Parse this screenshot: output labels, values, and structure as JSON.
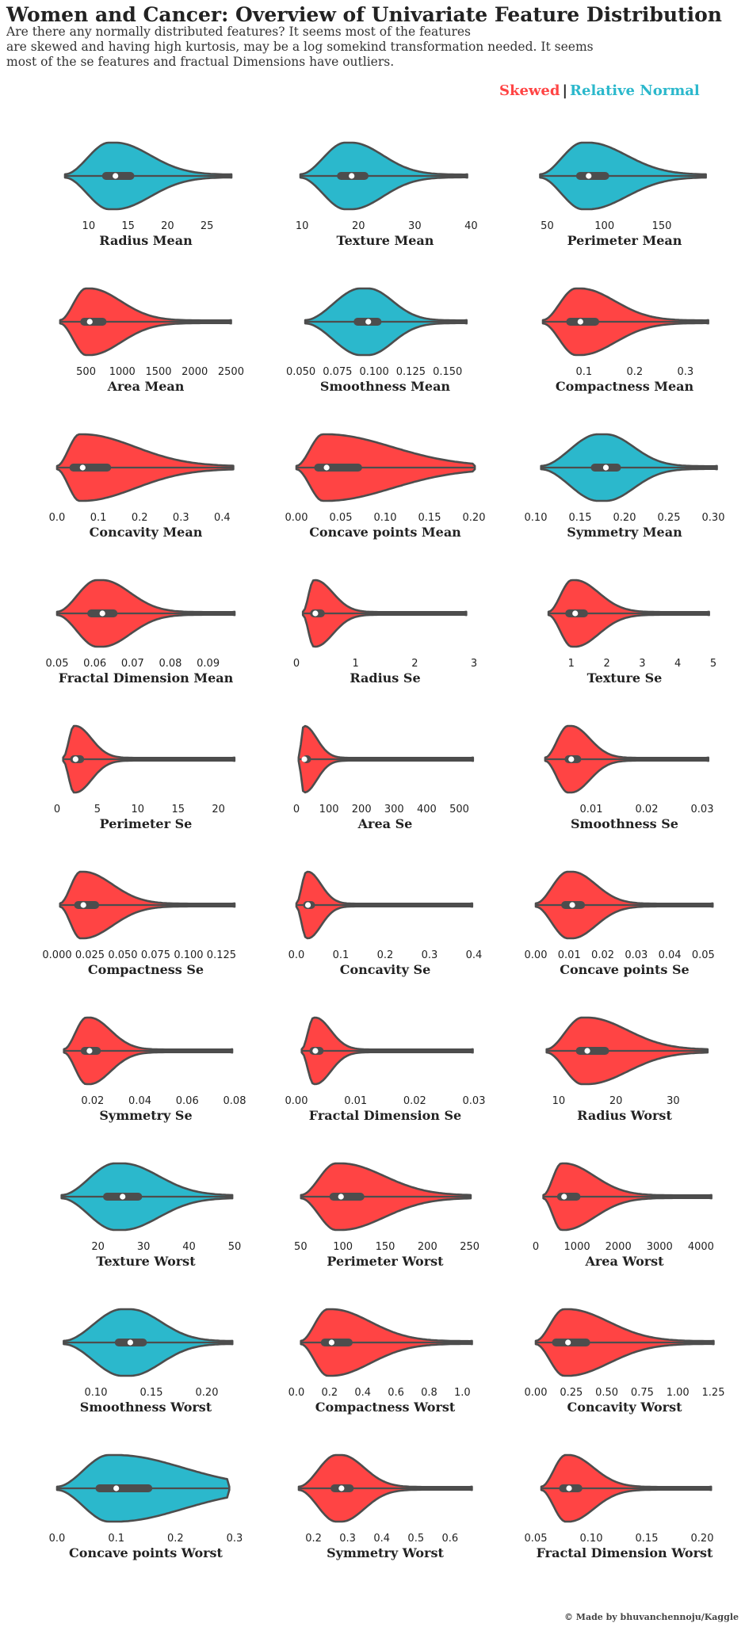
{
  "header": {
    "title": "Women and Cancer: Overview of Univariate Feature Distribution",
    "subtitle": "Are there any normally distributed features? It seems most of the features\nare skewed and having high kurtosis, may be a log somekind transformation needed. It seems\nmost of the se features and fractual Dimensions have outliers."
  },
  "legend": {
    "skewed_label": "Skewed",
    "separator": "|",
    "normal_label": "Relative Normal"
  },
  "colors": {
    "skewed": "#ff4444",
    "normal": "#2bb8cc",
    "outline": "#4d4d4d",
    "box": "#4d4d4d",
    "median": "#ffffff"
  },
  "credit": "© Made by bhuvanchennoju/Kaggle",
  "chart_data": [
    {
      "type": "violin",
      "xlabel": "Radius Mean",
      "category": "normal",
      "range": [
        6,
        28.5
      ],
      "ticks": [
        "10",
        "15",
        "20",
        "25"
      ],
      "min": 7.0,
      "q1": 11.7,
      "median": 13.4,
      "q3": 15.8,
      "max": 28.1
    },
    {
      "type": "violin",
      "xlabel": "Texture Mean",
      "category": "normal",
      "range": [
        9,
        40.5
      ],
      "ticks": [
        "10",
        "20",
        "30",
        "40"
      ],
      "min": 9.7,
      "q1": 16.2,
      "median": 18.8,
      "q3": 21.8,
      "max": 39.3
    },
    {
      "type": "violin",
      "xlabel": "Perimeter Mean",
      "category": "normal",
      "range": [
        40,
        195
      ],
      "ticks": [
        "50",
        "100",
        "150"
      ],
      "min": 43.8,
      "q1": 75.2,
      "median": 86.2,
      "q3": 104.1,
      "max": 188.5
    },
    {
      "type": "violin",
      "xlabel": "Area Mean",
      "category": "skewed",
      "range": [
        100,
        2550
      ],
      "ticks": [
        "500",
        "1000",
        "1500",
        "2000",
        "2500"
      ],
      "min": 143,
      "q1": 420,
      "median": 551,
      "q3": 783,
      "max": 2501
    },
    {
      "type": "violin",
      "xlabel": "Smoothness Mean",
      "category": "normal",
      "range": [
        0.047,
        0.168
      ],
      "ticks": [
        "0.050",
        "0.075",
        "0.100",
        "0.125",
        "0.150"
      ],
      "min": 0.053,
      "q1": 0.086,
      "median": 0.096,
      "q3": 0.105,
      "max": 0.163
    },
    {
      "type": "violin",
      "xlabel": "Compactness Mean",
      "category": "skewed",
      "range": [
        0.005,
        0.355
      ],
      "ticks": [
        "0.1",
        "0.2",
        "0.3"
      ],
      "min": 0.019,
      "q1": 0.065,
      "median": 0.093,
      "q3": 0.13,
      "max": 0.345
    },
    {
      "type": "violin",
      "xlabel": "Concavity Mean",
      "category": "skewed",
      "range": [
        0,
        0.43
      ],
      "ticks": [
        "0.0",
        "0.1",
        "0.2",
        "0.3",
        "0.4"
      ],
      "min": 0.0,
      "q1": 0.03,
      "median": 0.062,
      "q3": 0.131,
      "max": 0.427
    },
    {
      "type": "violin",
      "xlabel": "Concave points Mean",
      "category": "skewed",
      "range": [
        0,
        0.2
      ],
      "ticks": [
        "0.00",
        "0.05",
        "0.10",
        "0.15",
        "0.20"
      ],
      "min": 0.0,
      "q1": 0.02,
      "median": 0.034,
      "q3": 0.074,
      "max": 0.201
    },
    {
      "type": "violin",
      "xlabel": "Symmetry Mean",
      "category": "normal",
      "range": [
        0.1,
        0.3
      ],
      "ticks": [
        "0.10",
        "0.15",
        "0.20",
        "0.25",
        "0.30"
      ],
      "min": 0.106,
      "q1": 0.162,
      "median": 0.179,
      "q3": 0.196,
      "max": 0.304
    },
    {
      "type": "violin",
      "xlabel": "Fractal Dimension Mean",
      "category": "skewed",
      "range": [
        0.05,
        0.097
      ],
      "ticks": [
        "0.05",
        "0.06",
        "0.07",
        "0.08",
        "0.09"
      ],
      "min": 0.05,
      "q1": 0.058,
      "median": 0.062,
      "q3": 0.066,
      "max": 0.097
    },
    {
      "type": "violin",
      "xlabel": "Radius Se",
      "category": "skewed",
      "range": [
        0,
        3
      ],
      "ticks": [
        "0",
        "1",
        "2",
        "3"
      ],
      "min": 0.11,
      "q1": 0.23,
      "median": 0.32,
      "q3": 0.48,
      "max": 2.87
    },
    {
      "type": "violin",
      "xlabel": "Texture Se",
      "category": "skewed",
      "range": [
        0,
        5
      ],
      "ticks": [
        "1",
        "2",
        "3",
        "4",
        "5"
      ],
      "min": 0.36,
      "q1": 0.83,
      "median": 1.11,
      "q3": 1.47,
      "max": 4.88
    },
    {
      "type": "violin",
      "xlabel": "Perimeter Se",
      "category": "skewed",
      "range": [
        0,
        22
      ],
      "ticks": [
        "0",
        "5",
        "10",
        "15",
        "20"
      ],
      "min": 0.76,
      "q1": 1.61,
      "median": 2.29,
      "q3": 3.36,
      "max": 21.98
    },
    {
      "type": "violin",
      "xlabel": "Area Se",
      "category": "skewed",
      "range": [
        0,
        545
      ],
      "ticks": [
        "0",
        "100",
        "200",
        "300",
        "400",
        "500"
      ],
      "min": 6.8,
      "q1": 17.9,
      "median": 24.5,
      "q3": 45.2,
      "max": 542.2
    },
    {
      "type": "violin",
      "xlabel": "Smoothness Se",
      "category": "skewed",
      "range": [
        0,
        0.032
      ],
      "ticks": [
        "0.01",
        "0.02",
        "0.03"
      ],
      "min": 0.0017,
      "q1": 0.0052,
      "median": 0.0064,
      "q3": 0.0082,
      "max": 0.0311
    },
    {
      "type": "violin",
      "xlabel": "Compactness Se",
      "category": "skewed",
      "range": [
        0,
        0.135
      ],
      "ticks": [
        "0.000",
        "0.025",
        "0.050",
        "0.075",
        "0.100",
        "0.125"
      ],
      "min": 0.0023,
      "q1": 0.013,
      "median": 0.02,
      "q3": 0.032,
      "max": 0.135
    },
    {
      "type": "violin",
      "xlabel": "Concavity Se",
      "category": "skewed",
      "range": [
        0,
        0.4
      ],
      "ticks": [
        "0.0",
        "0.1",
        "0.2",
        "0.3",
        "0.4"
      ],
      "min": 0.0,
      "q1": 0.015,
      "median": 0.026,
      "q3": 0.042,
      "max": 0.396
    },
    {
      "type": "violin",
      "xlabel": "Concave points Se",
      "category": "skewed",
      "range": [
        0,
        0.053
      ],
      "ticks": [
        "0.00",
        "0.01",
        "0.02",
        "0.03",
        "0.04",
        "0.05"
      ],
      "min": 0.0,
      "q1": 0.0076,
      "median": 0.0109,
      "q3": 0.0147,
      "max": 0.0528
    },
    {
      "type": "violin",
      "xlabel": "Symmetry Se",
      "category": "skewed",
      "range": [
        0.005,
        0.08
      ],
      "ticks": [
        "0.02",
        "0.04",
        "0.06",
        "0.08"
      ],
      "min": 0.0079,
      "q1": 0.015,
      "median": 0.0187,
      "q3": 0.0235,
      "max": 0.079
    },
    {
      "type": "violin",
      "xlabel": "Fractal Dimension Se",
      "category": "skewed",
      "range": [
        0,
        0.03
      ],
      "ticks": [
        "0.00",
        "0.01",
        "0.02",
        "0.03"
      ],
      "min": 0.0009,
      "q1": 0.0022,
      "median": 0.0032,
      "q3": 0.0046,
      "max": 0.0298
    },
    {
      "type": "violin",
      "xlabel": "Radius Worst",
      "category": "skewed",
      "range": [
        6,
        37
      ],
      "ticks": [
        "10",
        "20",
        "30"
      ],
      "min": 7.9,
      "q1": 13.0,
      "median": 15.0,
      "q3": 18.8,
      "max": 36.0
    },
    {
      "type": "violin",
      "xlabel": "Texture Worst",
      "category": "normal",
      "range": [
        11,
        50
      ],
      "ticks": [
        "20",
        "30",
        "40",
        "50"
      ],
      "min": 12.0,
      "q1": 21.1,
      "median": 25.4,
      "q3": 29.7,
      "max": 49.5
    },
    {
      "type": "violin",
      "xlabel": "Perimeter Worst",
      "category": "skewed",
      "range": [
        45,
        255
      ],
      "ticks": [
        "50",
        "100",
        "150",
        "200",
        "250"
      ],
      "min": 50.4,
      "q1": 84.1,
      "median": 97.7,
      "q3": 125.4,
      "max": 251.2
    },
    {
      "type": "violin",
      "xlabel": "Area Worst",
      "category": "skewed",
      "range": [
        0,
        4300
      ],
      "ticks": [
        "0",
        "1000",
        "2000",
        "3000",
        "4000"
      ],
      "min": 185,
      "q1": 515,
      "median": 686,
      "q3": 1084,
      "max": 4254
    },
    {
      "type": "violin",
      "xlabel": "Smoothness Worst",
      "category": "normal",
      "range": [
        0.065,
        0.225
      ],
      "ticks": [
        "0.10",
        "0.15",
        "0.20"
      ],
      "min": 0.071,
      "q1": 0.117,
      "median": 0.131,
      "q3": 0.146,
      "max": 0.223
    },
    {
      "type": "violin",
      "xlabel": "Compactness Worst",
      "category": "skewed",
      "range": [
        0,
        1.07
      ],
      "ticks": [
        "0.0",
        "0.2",
        "0.4",
        "0.6",
        "0.8",
        "1.0"
      ],
      "min": 0.027,
      "q1": 0.147,
      "median": 0.212,
      "q3": 0.339,
      "max": 1.058
    },
    {
      "type": "violin",
      "xlabel": "Concavity Worst",
      "category": "skewed",
      "range": [
        0,
        1.25
      ],
      "ticks": [
        "0.00",
        "0.25",
        "0.50",
        "0.75",
        "1.00",
        "1.25"
      ],
      "min": 0.0,
      "q1": 0.114,
      "median": 0.227,
      "q3": 0.383,
      "max": 1.252
    },
    {
      "type": "violin",
      "xlabel": "Concave points Worst",
      "category": "normal",
      "range": [
        0,
        0.3
      ],
      "ticks": [
        "0.0",
        "0.1",
        "0.2",
        "0.3"
      ],
      "min": 0.0,
      "q1": 0.065,
      "median": 0.1,
      "q3": 0.161,
      "max": 0.291
    },
    {
      "type": "violin",
      "xlabel": "Symmetry Worst",
      "category": "skewed",
      "range": [
        0.15,
        0.67
      ],
      "ticks": [
        "0.2",
        "0.3",
        "0.4",
        "0.5",
        "0.6"
      ],
      "min": 0.157,
      "q1": 0.25,
      "median": 0.282,
      "q3": 0.318,
      "max": 0.664
    },
    {
      "type": "violin",
      "xlabel": "Fractal Dimension Worst",
      "category": "skewed",
      "range": [
        0.05,
        0.21
      ],
      "ticks": [
        "0.05",
        "0.10",
        "0.15",
        "0.20"
      ],
      "min": 0.055,
      "q1": 0.071,
      "median": 0.08,
      "q3": 0.092,
      "max": 0.208
    }
  ]
}
